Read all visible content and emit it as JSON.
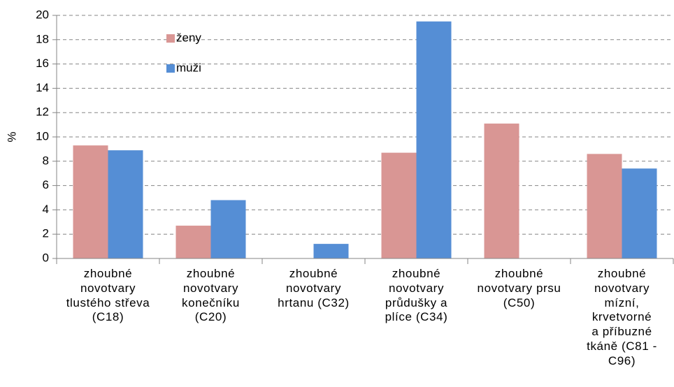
{
  "chart_data": {
    "type": "bar",
    "ylabel": "%",
    "categories": [
      "zhoubné\nnovotvary\ntlustého střeva\n(C18)",
      "zhoubné\nnovotvary\nkonečníku\n(C20)",
      "zhoubné\nnovotvary\nhrtanu (C32)",
      "zhoubné\nnovotvary\nprůdušky a\nplíce (C34)",
      "zhoubné\nnovotvary prsu\n(C50)",
      "zhoubné\nnovotvary\nmízní,\nkrvetvorné\na příbuzné\ntkáně (C81 -\nC96)"
    ],
    "series": [
      {
        "name": "ženy",
        "color": "#d99694",
        "values": [
          9.3,
          2.7,
          0,
          8.7,
          11.1,
          8.6
        ]
      },
      {
        "name": "muži",
        "color": "#558ed5",
        "values": [
          8.9,
          4.8,
          1.2,
          19.5,
          0,
          7.4
        ]
      }
    ],
    "ylim": [
      0,
      20
    ],
    "yticks": [
      0,
      2,
      4,
      6,
      8,
      10,
      12,
      14,
      16,
      18,
      20
    ],
    "grid": true
  }
}
